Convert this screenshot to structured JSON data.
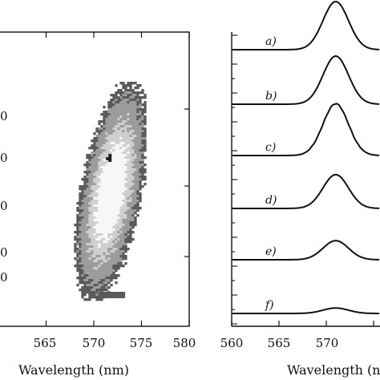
{
  "chart_data": [
    {
      "type": "heatmap",
      "xlabel": "Wavelength (nm)",
      "xlim": [
        560,
        580
      ],
      "xticks": [
        560,
        565,
        570,
        575,
        580
      ],
      "xtick_labels": [
        "",
        "565",
        "570",
        "575",
        "580"
      ],
      "left_tick_fragments": [
        "0",
        "0",
        "0",
        "0",
        "0"
      ],
      "colors": {
        "outer": "#5a5a5a",
        "mid": "#9c9c9c",
        "inner": "#cfcfcf",
        "core": "#f7f7f7",
        "spot": "#222222"
      },
      "blob": {
        "center_x": 571.7,
        "half_width_x": 3.1
      }
    },
    {
      "type": "line",
      "xlabel": "Wavelength (nm)",
      "xlim": [
        560,
        575
      ],
      "xticks": [
        560,
        565,
        570,
        575
      ],
      "xtick_labels": [
        "560",
        "565",
        "570",
        ""
      ],
      "series": [
        {
          "name": "a)",
          "peak_x": 571.0,
          "amplitude": 1.0,
          "baseline_rank": 0
        },
        {
          "name": "b)",
          "peak_x": 571.0,
          "amplitude": 1.0,
          "baseline_rank": 1
        },
        {
          "name": "c)",
          "peak_x": 571.0,
          "amplitude": 0.95,
          "baseline_rank": 2
        },
        {
          "name": "d)",
          "peak_x": 571.0,
          "amplitude": 0.62,
          "baseline_rank": 3
        },
        {
          "name": "e)",
          "peak_x": 571.0,
          "amplitude": 0.35,
          "baseline_rank": 4
        },
        {
          "name": "f)",
          "peak_x": 571.0,
          "amplitude": 0.1,
          "baseline_rank": 5
        }
      ]
    }
  ]
}
